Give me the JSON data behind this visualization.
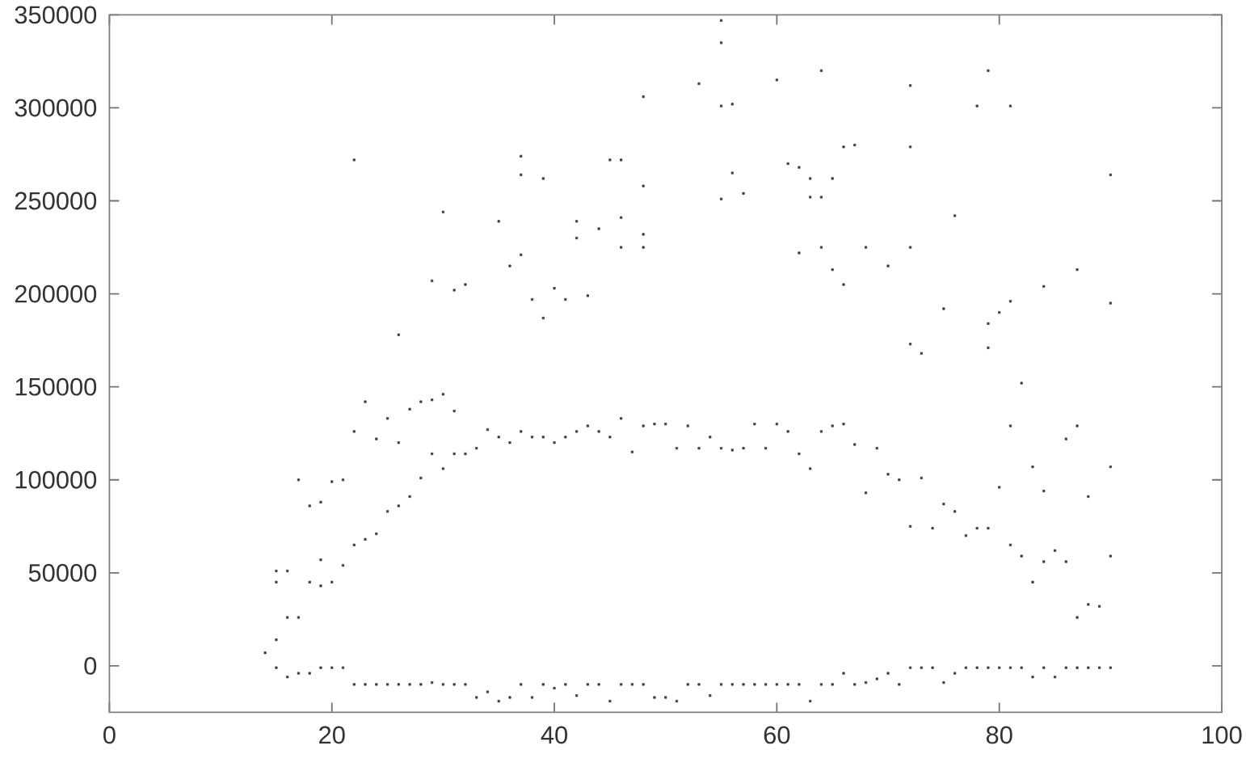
{
  "chart_data": {
    "type": "scatter",
    "color": "#404040",
    "marker": "square",
    "xlim": [
      0,
      100
    ],
    "ylim": [
      -25000,
      350000
    ],
    "xticks": [
      0,
      20,
      40,
      60,
      80,
      100
    ],
    "yticks": [
      0,
      50000,
      100000,
      150000,
      200000,
      250000,
      300000,
      350000
    ],
    "x": [
      14,
      15,
      15,
      16,
      16,
      17,
      17,
      18,
      18,
      19,
      19,
      20,
      20,
      21,
      21,
      22,
      22,
      23,
      23,
      24,
      24,
      25,
      25,
      26,
      26,
      27,
      27,
      28,
      28,
      29,
      29,
      30,
      30,
      31,
      31,
      32,
      32,
      33,
      33,
      34,
      34,
      35,
      35,
      36,
      36,
      37,
      37,
      38,
      38,
      39,
      39,
      40,
      40,
      41,
      41,
      42,
      42,
      43,
      43,
      44,
      44,
      45,
      45,
      46,
      46,
      47,
      47,
      48,
      48,
      49,
      49,
      50,
      50,
      51,
      51,
      52,
      52,
      53,
      53,
      54,
      54,
      55,
      55,
      56,
      56,
      57,
      57,
      58,
      58,
      59,
      59,
      60,
      60,
      61,
      61,
      62,
      62,
      63,
      63,
      64,
      64,
      65,
      65,
      66,
      66,
      67,
      67,
      68,
      68,
      69,
      69,
      70,
      70,
      71,
      71,
      72,
      72,
      73,
      73,
      74,
      74,
      75,
      75,
      76,
      76,
      77,
      77,
      78,
      78,
      79,
      79,
      80,
      80,
      81,
      81,
      82,
      82,
      83,
      83,
      84,
      84,
      85,
      85,
      86,
      86,
      87,
      87,
      88,
      88,
      89,
      89,
      90,
      90,
      15,
      15,
      16,
      17,
      18,
      19,
      19,
      20,
      21,
      22,
      23,
      24,
      25,
      26,
      27,
      28,
      29,
      30,
      31,
      22,
      26,
      29,
      31,
      30,
      32,
      37,
      37,
      39,
      35,
      37,
      36,
      45,
      46,
      42,
      44,
      46,
      48,
      48,
      42,
      41,
      43,
      38,
      40,
      39,
      55,
      55,
      53,
      55,
      56,
      60,
      64,
      72,
      79,
      78,
      81,
      66,
      67,
      72,
      90,
      61,
      62,
      63,
      65,
      56,
      57,
      55,
      63,
      64,
      76,
      46,
      48,
      48,
      64,
      68,
      72,
      62,
      87,
      90,
      84,
      81,
      80,
      79,
      79,
      82,
      75,
      72,
      73,
      65,
      66,
      70,
      87,
      86,
      88,
      90,
      81,
      84,
      83
    ],
    "values": [
      7000,
      14000,
      -1000,
      26000,
      -6000,
      26000,
      -4000,
      45000,
      -4000,
      43000,
      -1000,
      45000,
      -1000,
      54000,
      -1000,
      65000,
      -10000,
      68000,
      -10000,
      71000,
      -10000,
      83000,
      -10000,
      86000,
      -10000,
      91000,
      -10000,
      101000,
      -10000,
      114000,
      -9000,
      106000,
      -10000,
      114000,
      -10000,
      114000,
      -10000,
      117000,
      -17000,
      127000,
      -14000,
      123000,
      -19000,
      120000,
      -17000,
      126000,
      -10000,
      123000,
      -17000,
      123000,
      -10000,
      120000,
      -12000,
      123000,
      -10000,
      126000,
      -16000,
      129000,
      -10000,
      126000,
      -10000,
      123000,
      -19000,
      133000,
      -10000,
      115000,
      -10000,
      129000,
      -10000,
      130000,
      -17000,
      130000,
      -17000,
      117000,
      -19000,
      129000,
      -10000,
      117000,
      -10000,
      123000,
      -16000,
      117000,
      -10000,
      116000,
      -10000,
      117000,
      -10000,
      130000,
      -10000,
      117000,
      -10000,
      130000,
      -10000,
      126000,
      -10000,
      114000,
      -10000,
      106000,
      -19000,
      126000,
      -10000,
      129000,
      -10000,
      130000,
      -4000,
      119000,
      -10000,
      93000,
      -9000,
      117000,
      -7000,
      103000,
      -4000,
      100000,
      -10000,
      75000,
      -1000,
      101000,
      -1000,
      74000,
      -1000,
      87000,
      -9000,
      83000,
      -4000,
      70000,
      -1000,
      74000,
      -1000,
      74000,
      -1000,
      96000,
      -1000,
      65000,
      -1000,
      59000,
      -1000,
      45000,
      -6000,
      56000,
      -1000,
      62000,
      -6000,
      56000,
      -1000,
      26000,
      -1000,
      33000,
      -1000,
      32000,
      -1000,
      59000,
      -1000,
      51000,
      45000,
      51000,
      100000,
      86000,
      88000,
      57000,
      99000,
      100000,
      126000,
      142000,
      122000,
      133000,
      120000,
      138000,
      142000,
      143000,
      146000,
      137000,
      272000,
      178000,
      207000,
      202000,
      244000,
      205000,
      274000,
      264000,
      262000,
      239000,
      221000,
      215000,
      272000,
      272000,
      239000,
      235000,
      241000,
      306000,
      258000,
      230000,
      197000,
      199000,
      197000,
      203000,
      187000,
      347000,
      335000,
      313000,
      301000,
      302000,
      315000,
      320000,
      312000,
      320000,
      301000,
      301000,
      279000,
      280000,
      279000,
      264000,
      270000,
      268000,
      262000,
      262000,
      265000,
      254000,
      251000,
      252000,
      252000,
      242000,
      225000,
      232000,
      225000,
      225000,
      225000,
      225000,
      222000,
      213000,
      195000,
      204000,
      196000,
      190000,
      184000,
      171000,
      152000,
      192000,
      173000,
      168000,
      213000,
      205000,
      215000,
      129000,
      122000,
      91000,
      107000,
      129000,
      94000,
      107000
    ]
  }
}
